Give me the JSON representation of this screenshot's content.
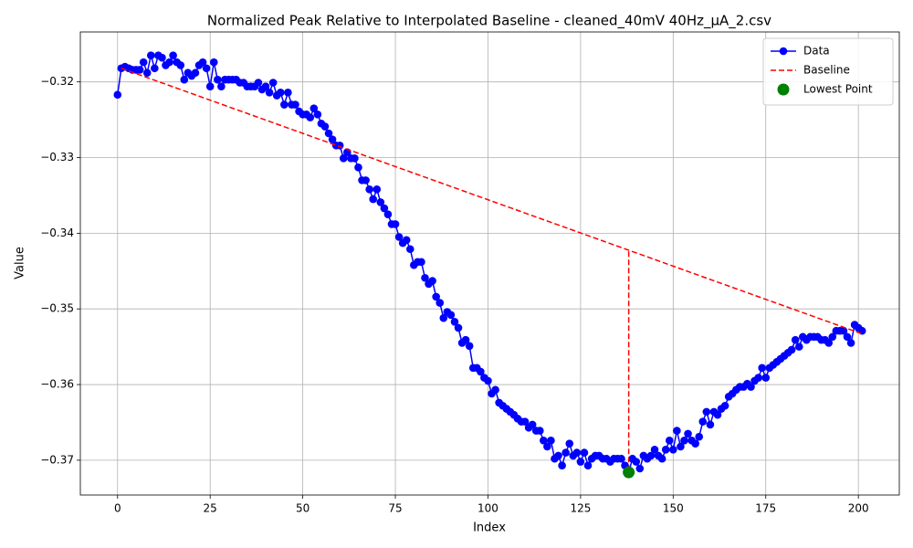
{
  "chart_data": {
    "type": "line",
    "title": "Normalized Peak Relative to Interpolated Baseline - cleaned_40mV 40Hz_μA_2.csv",
    "x_label": "Index",
    "y_label": "Value",
    "xlim": [
      -10.05,
      211.05
    ],
    "ylim": [
      -0.3746,
      -0.3134
    ],
    "xticks": [
      0,
      25,
      50,
      75,
      100,
      125,
      150,
      175,
      200
    ],
    "yticks": [
      {
        "value": -0.37,
        "label": "−0.37"
      },
      {
        "value": -0.36,
        "label": "−0.36"
      },
      {
        "value": -0.35,
        "label": "−0.35"
      },
      {
        "value": -0.34,
        "label": "−0.34"
      },
      {
        "value": -0.33,
        "label": "−0.33"
      },
      {
        "value": -0.32,
        "label": "−0.32"
      }
    ],
    "grid": true,
    "legend": "upper right",
    "series": [
      {
        "name": "Data",
        "color": "#0000ff",
        "linestyle": "solid",
        "marker": "circle",
        "x": [
          0,
          1,
          2,
          3,
          4,
          5,
          6,
          7,
          8,
          9,
          10,
          11,
          12,
          13,
          14,
          15,
          16,
          17,
          18,
          19,
          20,
          21,
          22,
          23,
          24,
          25,
          26,
          27,
          28,
          29,
          30,
          31,
          32,
          33,
          34,
          35,
          36,
          37,
          38,
          39,
          40,
          41,
          42,
          43,
          44,
          45,
          46,
          47,
          48,
          49,
          50,
          51,
          52,
          53,
          54,
          55,
          56,
          57,
          58,
          59,
          60,
          61,
          62,
          63,
          64,
          65,
          66,
          67,
          68,
          69,
          70,
          71,
          72,
          73,
          74,
          75,
          76,
          77,
          78,
          79,
          80,
          81,
          82,
          83,
          84,
          85,
          86,
          87,
          88,
          89,
          90,
          91,
          92,
          93,
          94,
          95,
          96,
          97,
          98,
          99,
          100,
          101,
          102,
          103,
          104,
          105,
          106,
          107,
          108,
          109,
          110,
          111,
          112,
          113,
          114,
          115,
          116,
          117,
          118,
          119,
          120,
          121,
          122,
          123,
          124,
          125,
          126,
          127,
          128,
          129,
          130,
          131,
          132,
          133,
          134,
          135,
          136,
          137,
          138,
          139,
          140,
          141,
          142,
          143,
          144,
          145,
          146,
          147,
          148,
          149,
          150,
          151,
          152,
          153,
          154,
          155,
          156,
          157,
          158,
          159,
          160,
          161,
          162,
          163,
          164,
          165,
          166,
          167,
          168,
          169,
          170,
          171,
          172,
          173,
          174,
          175,
          176,
          177,
          178,
          179,
          180,
          181,
          182,
          183,
          184,
          185,
          186,
          187,
          188,
          189,
          190,
          191,
          192,
          193,
          194,
          195,
          196,
          197,
          198,
          199,
          200,
          201
        ],
        "values": [
          -0.3217,
          -0.3182,
          -0.318,
          -0.3182,
          -0.3184,
          -0.3184,
          -0.3184,
          -0.3174,
          -0.3188,
          -0.3165,
          -0.3182,
          -0.3165,
          -0.3168,
          -0.3178,
          -0.3174,
          -0.3165,
          -0.3174,
          -0.3178,
          -0.3197,
          -0.3188,
          -0.3192,
          -0.3188,
          -0.3178,
          -0.3174,
          -0.3182,
          -0.3206,
          -0.3174,
          -0.3197,
          -0.3206,
          -0.3197,
          -0.3197,
          -0.3197,
          -0.3197,
          -0.3201,
          -0.3201,
          -0.3206,
          -0.3206,
          -0.3206,
          -0.3201,
          -0.321,
          -0.3206,
          -0.3214,
          -0.3201,
          -0.3218,
          -0.3214,
          -0.323,
          -0.3214,
          -0.323,
          -0.323,
          -0.3239,
          -0.3243,
          -0.3243,
          -0.3247,
          -0.3235,
          -0.3243,
          -0.3255,
          -0.3259,
          -0.3268,
          -0.3276,
          -0.3284,
          -0.3284,
          -0.3301,
          -0.3293,
          -0.3301,
          -0.3301,
          -0.3313,
          -0.333,
          -0.333,
          -0.3342,
          -0.3355,
          -0.3342,
          -0.3359,
          -0.3367,
          -0.3375,
          -0.3388,
          -0.3388,
          -0.3405,
          -0.3413,
          -0.3409,
          -0.3421,
          -0.3442,
          -0.3438,
          -0.3438,
          -0.3459,
          -0.3467,
          -0.3463,
          -0.3484,
          -0.3492,
          -0.3512,
          -0.3504,
          -0.3508,
          -0.3517,
          -0.3525,
          -0.3545,
          -0.3541,
          -0.3549,
          -0.3578,
          -0.3578,
          -0.3583,
          -0.3591,
          -0.3595,
          -0.3612,
          -0.3607,
          -0.3624,
          -0.3628,
          -0.3632,
          -0.3636,
          -0.364,
          -0.3645,
          -0.3649,
          -0.3649,
          -0.3657,
          -0.3653,
          -0.3661,
          -0.3661,
          -0.3674,
          -0.3682,
          -0.3674,
          -0.3698,
          -0.3694,
          -0.3707,
          -0.369,
          -0.3678,
          -0.3694,
          -0.369,
          -0.3702,
          -0.369,
          -0.3707,
          -0.3698,
          -0.3694,
          -0.3694,
          -0.3698,
          -0.3698,
          -0.3702,
          -0.3698,
          -0.3698,
          -0.3698,
          -0.3707,
          -0.3716,
          -0.3698,
          -0.3702,
          -0.3711,
          -0.3694,
          -0.3698,
          -0.3694,
          -0.3686,
          -0.3694,
          -0.3698,
          -0.3686,
          -0.3674,
          -0.3686,
          -0.3661,
          -0.3682,
          -0.3674,
          -0.3665,
          -0.3674,
          -0.3678,
          -0.3669,
          -0.3649,
          -0.3636,
          -0.3653,
          -0.3636,
          -0.364,
          -0.3632,
          -0.3628,
          -0.3616,
          -0.3612,
          -0.3607,
          -0.3603,
          -0.3603,
          -0.3599,
          -0.3603,
          -0.3595,
          -0.3591,
          -0.3578,
          -0.3591,
          -0.3578,
          -0.3574,
          -0.357,
          -0.3566,
          -0.3562,
          -0.3558,
          -0.3554,
          -0.3541,
          -0.355,
          -0.3537,
          -0.3541,
          -0.3537,
          -0.3537,
          -0.3537,
          -0.3541,
          -0.3541,
          -0.3545,
          -0.3537,
          -0.3529,
          -0.3529,
          -0.3529,
          -0.3537,
          -0.3545,
          -0.3521,
          -0.3525,
          -0.3529
        ]
      },
      {
        "name": "Baseline",
        "color": "#ff0000",
        "linestyle": "dashed",
        "marker": "none",
        "x": [
          1,
          201,
          138,
          138,
          138
        ],
        "values": [
          -0.3182,
          -0.3533,
          null,
          -0.3424,
          -0.3716
        ]
      },
      {
        "name": "Lowest Point",
        "color": "#008000",
        "linestyle": "none",
        "marker": "big-circle",
        "x": [
          138
        ],
        "values": [
          -0.3716
        ]
      }
    ]
  }
}
